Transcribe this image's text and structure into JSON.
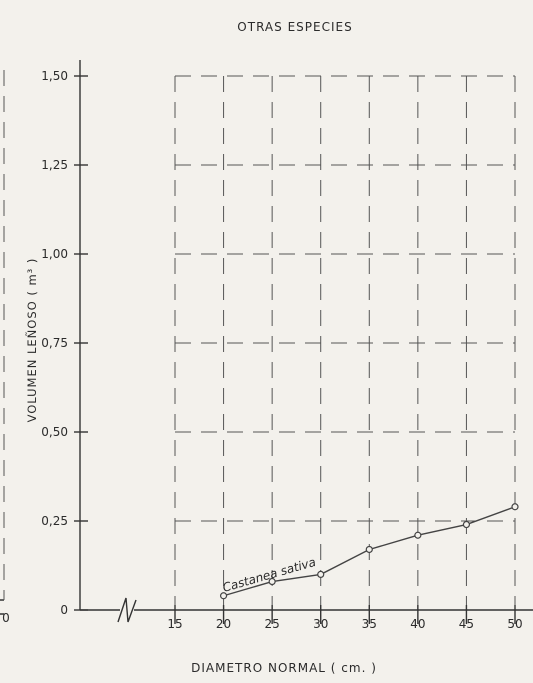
{
  "chart_data": {
    "type": "line",
    "title": "OTRAS ESPECIES",
    "xlabel": "DIAMETRO NORMAL ( cm. )",
    "ylabel": "VOLUMEN LEÑOSO ( m³ )",
    "x_ticks": [
      "15",
      "20",
      "25",
      "30",
      "35",
      "40",
      "45",
      "50"
    ],
    "y_ticks": [
      "0",
      "0,25",
      "0,50",
      "0,75",
      "1,00",
      "1,25",
      "1,50"
    ],
    "xlim": [
      15,
      50
    ],
    "ylim": [
      0,
      1.5
    ],
    "grid": true,
    "axis_break": true,
    "series": [
      {
        "name": "Castanea sativa",
        "x": [
          20,
          25,
          30,
          35,
          40,
          45,
          50
        ],
        "y": [
          0.04,
          0.08,
          0.1,
          0.17,
          0.21,
          0.24,
          0.29
        ]
      }
    ],
    "left_edge_tick_label": "0"
  }
}
